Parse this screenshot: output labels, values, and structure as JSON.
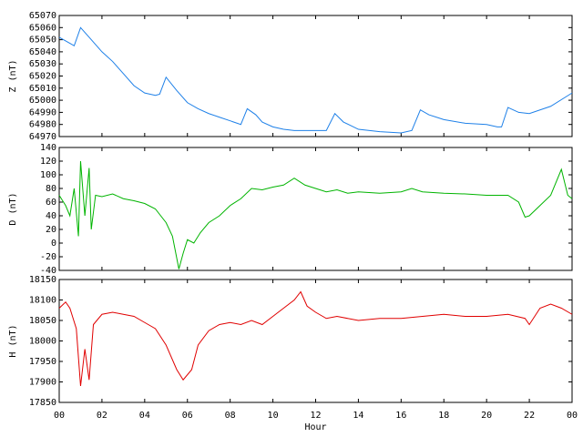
{
  "chart_data": [
    {
      "type": "line",
      "ylabel": "Z (nT)",
      "xlim": [
        0,
        24
      ],
      "ylim": [
        64970,
        65070
      ],
      "yticks": [
        64970,
        64980,
        64990,
        65000,
        65010,
        65020,
        65030,
        65040,
        65050,
        65060,
        65070
      ],
      "x": [
        0,
        0.5,
        0.7,
        1.0,
        1.5,
        2,
        2.5,
        3,
        3.5,
        4,
        4.5,
        4.7,
        5,
        5.5,
        6,
        6.5,
        7,
        7.5,
        8,
        8.5,
        8.8,
        9.2,
        9.5,
        10,
        10.5,
        11,
        11.5,
        12,
        12.5,
        12.9,
        13.3,
        14,
        15,
        16,
        16.5,
        16.9,
        17.3,
        18,
        19,
        20,
        20.5,
        20.7,
        21,
        21.5,
        22,
        23,
        24
      ],
      "series": [
        {
          "color": "#1e80e8",
          "values": [
            65052,
            65047,
            65045,
            65060,
            65050,
            65040,
            65032,
            65022,
            65012,
            65006,
            65004,
            65005,
            65019,
            65008,
            64998,
            64993,
            64989,
            64986,
            64983,
            64980,
            64993,
            64988,
            64982,
            64978,
            64976,
            64975,
            64975,
            64975,
            64975,
            64989,
            64982,
            64976,
            64974,
            64973,
            64975,
            64992,
            64988,
            64984,
            64981,
            64980,
            64978,
            64978,
            64994,
            64990,
            64989,
            64995,
            65006
          ]
        }
      ]
    },
    {
      "type": "line",
      "ylabel": "D (nT)",
      "xlim": [
        0,
        24
      ],
      "ylim": [
        -40,
        140
      ],
      "yticks": [
        -40,
        -20,
        0,
        20,
        40,
        60,
        80,
        100,
        120,
        140
      ],
      "x": [
        0,
        0.3,
        0.5,
        0.7,
        0.9,
        1.0,
        1.2,
        1.4,
        1.5,
        1.7,
        2,
        2.5,
        3,
        3.5,
        4,
        4.5,
        5,
        5.3,
        5.6,
        5.8,
        6,
        6.3,
        6.6,
        7,
        7.5,
        8,
        8.5,
        9,
        9.5,
        10,
        10.5,
        11,
        11.5,
        12,
        12.5,
        13,
        13.5,
        14,
        15,
        16,
        16.5,
        17,
        18,
        19,
        20,
        21,
        21.5,
        21.8,
        22,
        22.5,
        23,
        23.5,
        23.8,
        24
      ],
      "series": [
        {
          "color": "#00b400",
          "values": [
            70,
            55,
            40,
            80,
            10,
            120,
            40,
            110,
            20,
            70,
            68,
            72,
            65,
            62,
            58,
            50,
            30,
            10,
            -38,
            -15,
            5,
            0,
            15,
            30,
            40,
            55,
            65,
            80,
            78,
            82,
            85,
            95,
            85,
            80,
            75,
            78,
            73,
            75,
            73,
            75,
            80,
            75,
            73,
            72,
            70,
            70,
            60,
            38,
            40,
            55,
            70,
            108,
            70,
            65
          ]
        }
      ]
    },
    {
      "type": "line",
      "ylabel": "H (nT)",
      "xlabel": "Hour",
      "xlim": [
        0,
        24
      ],
      "ylim": [
        17850,
        18150
      ],
      "yticks": [
        17850,
        17900,
        17950,
        18000,
        18050,
        18100,
        18150
      ],
      "xticks": [
        {
          "value": 0,
          "label": "00"
        },
        {
          "value": 2,
          "label": "02"
        },
        {
          "value": 4,
          "label": "04"
        },
        {
          "value": 6,
          "label": "06"
        },
        {
          "value": 8,
          "label": "08"
        },
        10,
        12,
        14,
        16,
        18,
        20,
        22,
        {
          "value": 24,
          "label": "00"
        }
      ],
      "x": [
        0,
        0.3,
        0.5,
        0.8,
        1.0,
        1.2,
        1.4,
        1.6,
        2,
        2.5,
        3,
        3.5,
        4,
        4.5,
        5,
        5.5,
        5.8,
        6.2,
        6.5,
        7,
        7.5,
        8,
        8.5,
        9,
        9.5,
        10,
        10.5,
        11,
        11.3,
        11.6,
        12,
        12.5,
        13,
        14,
        15,
        16,
        17,
        18,
        19,
        20,
        21,
        21.8,
        22,
        22.5,
        23,
        23.5,
        24
      ],
      "series": [
        {
          "color": "#e00000",
          "values": [
            18080,
            18095,
            18080,
            18030,
            17890,
            17980,
            17905,
            18040,
            18065,
            18070,
            18065,
            18060,
            18045,
            18030,
            17990,
            17930,
            17905,
            17930,
            17990,
            18025,
            18040,
            18045,
            18040,
            18050,
            18040,
            18060,
            18080,
            18100,
            18120,
            18085,
            18070,
            18055,
            18060,
            18050,
            18055,
            18055,
            18060,
            18065,
            18060,
            18060,
            18065,
            18055,
            18040,
            18080,
            18090,
            18080,
            18065
          ]
        }
      ]
    }
  ]
}
